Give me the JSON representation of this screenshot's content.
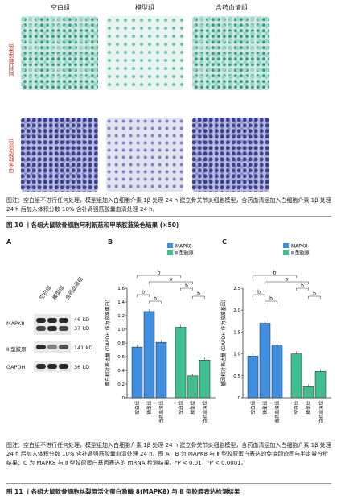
{
  "fig10": {
    "columns": [
      "空白组",
      "模型组",
      "含药血清组"
    ],
    "rows": [
      "阿利新蓝染色",
      "甲苯胺蓝染色"
    ],
    "note": "图注：空白组不进行任何处理，模型组加入白细胞介素 1β 处理 24 h 建立骨关节炎细胞模型，含药血清组加入白细胞介素 1β 处理 24 h 后加入体积分数 10% 含补肾强筋胶囊血清处理 24 h。",
    "title": "图 10 丨各组大鼠软骨细胞阿利新蓝和甲苯胺蓝染色结果 (×50)"
  },
  "panelA": {
    "letter": "A",
    "lanes": [
      "空白组",
      "模型组",
      "含药血清组"
    ],
    "bands": [
      {
        "name": "MAPK8",
        "sizes": [
          "46 kD",
          "37 kD"
        ]
      },
      {
        "name": "Ⅱ 型胶原",
        "sizes": [
          "141 kD"
        ]
      },
      {
        "name": "GAPDH",
        "sizes": [
          "36 kD"
        ]
      }
    ]
  },
  "chart_data": [
    {
      "type": "bar",
      "panel": "B",
      "ylabel": "蛋白相对表达量 (GAPDH 作为校准蛋白)",
      "ylim": [
        0,
        1.6
      ],
      "yticks": [
        "0",
        "0.2",
        "0.4",
        "0.6",
        "0.8",
        "1.0",
        "1.2",
        "1.4",
        "1.6"
      ],
      "legend": [
        "MAPK8",
        "Ⅱ 型胶原"
      ],
      "categories": [
        "空白组",
        "模型组",
        "含药血清组"
      ],
      "series": [
        {
          "name": "MAPK8",
          "values": [
            0.74,
            1.26,
            0.81
          ],
          "color": "#3f8ee0"
        },
        {
          "name": "Ⅱ 型胶原",
          "values": [
            1.03,
            0.32,
            0.55
          ],
          "color": "#3fbf8f"
        }
      ],
      "sig_labels": [
        "a",
        "b",
        "b",
        "b",
        "b",
        "b"
      ]
    },
    {
      "type": "bar",
      "panel": "C",
      "ylabel": "基因相对表达量 (GAPDH 作为校准基因)",
      "ylim": [
        0,
        2.5
      ],
      "yticks": [
        "0",
        "0.5",
        "1.0",
        "1.5",
        "2.0",
        "2.5"
      ],
      "legend": [
        "MAPK8",
        "Ⅱ 型胶原"
      ],
      "categories": [
        "空白组",
        "模型组",
        "含药血清组"
      ],
      "series": [
        {
          "name": "MAPK8",
          "values": [
            0.95,
            1.7,
            1.2
          ],
          "color": "#3f8ee0"
        },
        {
          "name": "Ⅱ 型胶原",
          "values": [
            1.0,
            0.25,
            0.6
          ],
          "color": "#3fbf8f"
        }
      ],
      "sig_labels": [
        "a",
        "b",
        "b",
        "b",
        "b",
        "b"
      ]
    }
  ],
  "fig11": {
    "note": "图注：空白组不进行任何处理，模型组加入白细胞介素 1β 处理 24 h 建立骨关节炎细胞模型，含药血清组加入白细胞介素 1β 处理 24 h 后加入体积分数 10% 含补肾强筋胶囊血清处理 24 h。图 A，B 为 MAPK8 与 Ⅱ 型胶原蛋白表达的免疫印迹图与半定量分析结果；C 为 MAPK8 与 Ⅱ 型胶原蛋白基因表达的 mRNA 检测结果。ᵃP < 0.01，ᵇP < 0.0001。",
    "title": "图 11 丨各组大鼠软骨细胞丝裂原活化蛋白激酶 8(MAPK8) 与 Ⅱ 型胶原表达检测结果"
  }
}
